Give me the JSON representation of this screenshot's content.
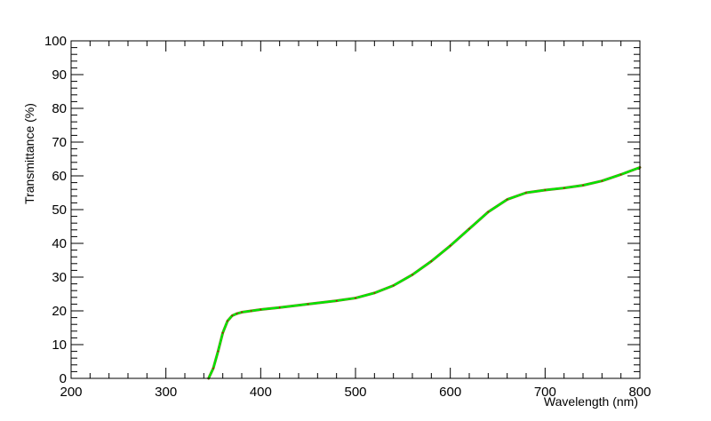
{
  "chart_data": {
    "type": "line",
    "title": "",
    "xlabel": "Wavelength (nm)",
    "ylabel": "Transmittance (%)",
    "xlim": [
      200,
      800
    ],
    "ylim": [
      0,
      100
    ],
    "x_ticks": [
      200,
      300,
      400,
      500,
      600,
      700,
      800
    ],
    "y_ticks": [
      0,
      10,
      20,
      30,
      40,
      50,
      60,
      70,
      80,
      90,
      100
    ],
    "grid": false,
    "legend": "none",
    "colors": {
      "frame": "#000000",
      "series_primary": "#00e600",
      "series_secondary": "#c40000"
    },
    "series": [
      {
        "x": [
          345,
          350,
          355,
          360,
          365,
          370,
          375,
          380,
          390,
          400,
          420,
          450,
          480,
          500,
          520,
          540,
          560,
          580,
          600,
          620,
          640,
          660,
          680,
          700,
          720,
          740,
          760,
          780,
          800
        ],
        "values": [
          0,
          3,
          8,
          13.5,
          17,
          18.6,
          19.2,
          19.6,
          20,
          20.4,
          21,
          22,
          23,
          23.8,
          25.3,
          27.5,
          30.7,
          34.7,
          39.3,
          44.3,
          49.3,
          53,
          55,
          55.8,
          56.4,
          57.2,
          58.5,
          60.4,
          62.5
        ]
      },
      {
        "x": [
          345,
          350,
          355,
          360,
          365,
          370,
          375,
          380,
          390,
          400,
          420,
          450,
          480,
          500,
          520,
          540,
          560,
          580,
          600,
          620,
          640,
          660,
          680,
          700,
          720,
          740,
          760,
          780,
          800
        ],
        "values": [
          0,
          3,
          8,
          13.5,
          17,
          18.6,
          19.2,
          19.6,
          20,
          20.4,
          21,
          22,
          23,
          23.8,
          25.3,
          27.5,
          30.7,
          34.7,
          39.3,
          44.3,
          49.3,
          53,
          55,
          55.8,
          56.4,
          57.2,
          58.5,
          60.4,
          62.5
        ]
      }
    ]
  }
}
